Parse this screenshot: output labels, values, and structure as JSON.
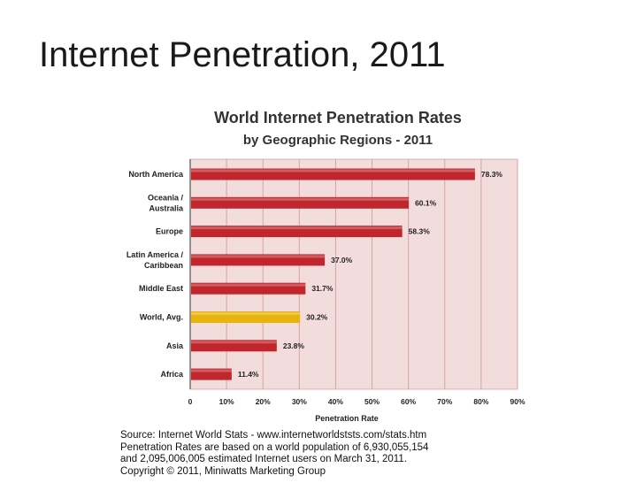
{
  "slide": {
    "title": "Internet Penetration, 2011"
  },
  "chart_data": {
    "type": "bar",
    "orientation": "horizontal",
    "title": "World Internet Penetration Rates",
    "subtitle": "by Geographic Regions - 2011",
    "xlabel": "Penetration Rate",
    "ylabel": "",
    "xlim": [
      0,
      90
    ],
    "xticks": [
      0,
      10,
      20,
      30,
      40,
      50,
      60,
      70,
      80,
      90
    ],
    "xtick_labels": [
      "0",
      "10%",
      "20%",
      "30%",
      "40%",
      "50%",
      "60%",
      "70%",
      "80%",
      "90%"
    ],
    "grid": true,
    "categories": [
      [
        "North America"
      ],
      [
        "Oceania  /",
        "Australia"
      ],
      [
        "Europe"
      ],
      [
        "Latin America /",
        "Caribbean"
      ],
      [
        "Middle East"
      ],
      [
        "World, Avg."
      ],
      [
        "Asia"
      ],
      [
        "Africa"
      ]
    ],
    "values": [
      78.3,
      60.1,
      58.3,
      37.0,
      31.7,
      30.2,
      23.8,
      11.4
    ],
    "value_labels": [
      "78.3%",
      "60.1%",
      "58.3%",
      "37.0%",
      "31.7%",
      "30.2%",
      "23.8%",
      "11.4%"
    ],
    "highlight_category": "World, Avg.",
    "colors": {
      "bar": "#c0262c",
      "highlight_bar": "#e8b40c",
      "plot_background": "#f3dcdc",
      "gridline": "#d9a2a2",
      "title": "#333333"
    }
  },
  "source": {
    "lines": [
      "Source: Internet World Stats - www.internetworldststs.com/stats.htm",
      "Penetration Rates are based on a world population of 6,930,055,154",
      "and 2,095,006,005 estimated Internet users on March 31, 2011.",
      "Copyright © 2011, Miniwatts Marketing Group"
    ]
  }
}
